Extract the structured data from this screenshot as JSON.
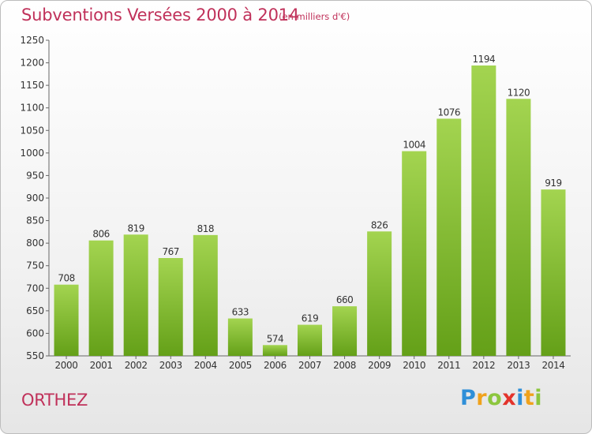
{
  "title": "Subventions Versées 2000 à 2014",
  "subtitle": "(en milliers d'€)",
  "commune": "ORTHEZ",
  "logo": {
    "text": "Proxiti",
    "letters": [
      "P",
      "r",
      "o",
      "x",
      "i",
      "t",
      "i"
    ],
    "colors": [
      "#2f8fd8",
      "#f0a21c",
      "#8cc63e",
      "#e3332b",
      "#2f8fd8",
      "#f0a21c",
      "#8cc63e"
    ]
  },
  "colors": {
    "accent": "#c0315a",
    "bar_top": "#a3d450",
    "bar_bottom": "#64a018"
  },
  "chart_data": {
    "type": "bar",
    "title": "Subventions Versées 2000 à 2014",
    "subtitle": "(en milliers d'€)",
    "categories": [
      "2000",
      "2001",
      "2002",
      "2003",
      "2004",
      "2005",
      "2006",
      "2007",
      "2008",
      "2009",
      "2010",
      "2011",
      "2012",
      "2013",
      "2014"
    ],
    "values": [
      708,
      806,
      819,
      767,
      818,
      633,
      574,
      619,
      660,
      826,
      1004,
      1076,
      1194,
      1120,
      919
    ],
    "ylim": [
      550,
      1250
    ],
    "yticks": [
      550,
      600,
      650,
      700,
      750,
      800,
      850,
      900,
      950,
      1000,
      1050,
      1100,
      1150,
      1200,
      1250
    ],
    "grid": false,
    "data_labels": true
  }
}
